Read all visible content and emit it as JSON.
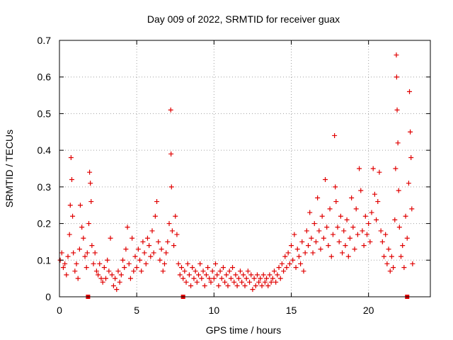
{
  "chart_data": {
    "type": "scatter",
    "title": "Day 009 of 2022, SRMTID for receiver guax",
    "xlabel": "GPS time / hours",
    "ylabel": "SRMTID / TECUs",
    "xlim": [
      0,
      24
    ],
    "ylim": [
      0,
      0.7
    ],
    "xticks": [
      0,
      5,
      10,
      15,
      20
    ],
    "yticks": [
      0,
      0.1,
      0.2,
      0.3,
      0.4,
      0.5,
      0.6,
      0.7
    ],
    "xtick_labels": [
      "0",
      "5",
      "10",
      "15",
      "20"
    ],
    "ytick_labels": [
      "0",
      "0.1",
      "0.2",
      "0.3",
      "0.4",
      "0.5",
      "0.6",
      "0.7"
    ],
    "grid": true,
    "marker": "+",
    "color": "#e00000",
    "series": [
      {
        "name": "SRMTID",
        "points": [
          [
            0.05,
            0.1
          ],
          [
            0.15,
            0.12
          ],
          [
            0.25,
            0.08
          ],
          [
            0.35,
            0.09
          ],
          [
            0.45,
            0.06
          ],
          [
            0.55,
            0.11
          ],
          [
            0.65,
            0.17
          ],
          [
            0.7,
            0.25
          ],
          [
            0.75,
            0.38
          ],
          [
            0.8,
            0.32
          ],
          [
            0.85,
            0.22
          ],
          [
            0.9,
            0.12
          ],
          [
            1.0,
            0.07
          ],
          [
            1.1,
            0.09
          ],
          [
            1.2,
            0.05
          ],
          [
            1.3,
            0.13
          ],
          [
            1.35,
            0.25
          ],
          [
            1.45,
            0.19
          ],
          [
            1.55,
            0.16
          ],
          [
            1.65,
            0.11
          ],
          [
            1.75,
            0.08
          ],
          [
            1.8,
            0.12
          ],
          [
            1.9,
            0.2
          ],
          [
            1.95,
            0.34
          ],
          [
            2.0,
            0.31
          ],
          [
            2.05,
            0.26
          ],
          [
            2.1,
            0.14
          ],
          [
            2.2,
            0.09
          ],
          [
            2.3,
            0.12
          ],
          [
            2.4,
            0.07
          ],
          [
            2.5,
            0.06
          ],
          [
            2.6,
            0.09
          ],
          [
            2.7,
            0.05
          ],
          [
            2.8,
            0.04
          ],
          [
            2.9,
            0.08
          ],
          [
            3.0,
            0.05
          ],
          [
            3.1,
            0.1
          ],
          [
            3.2,
            0.07
          ],
          [
            3.3,
            0.16
          ],
          [
            3.4,
            0.06
          ],
          [
            3.5,
            0.03
          ],
          [
            3.6,
            0.05
          ],
          [
            3.7,
            0.02
          ],
          [
            3.8,
            0.07
          ],
          [
            3.9,
            0.04
          ],
          [
            4.0,
            0.06
          ],
          [
            4.1,
            0.1
          ],
          [
            4.2,
            0.08
          ],
          [
            4.3,
            0.13
          ],
          [
            4.4,
            0.19
          ],
          [
            4.5,
            0.09
          ],
          [
            4.6,
            0.05
          ],
          [
            4.7,
            0.16
          ],
          [
            4.8,
            0.07
          ],
          [
            4.9,
            0.11
          ],
          [
            5.0,
            0.08
          ],
          [
            5.1,
            0.13
          ],
          [
            5.2,
            0.1
          ],
          [
            5.3,
            0.07
          ],
          [
            5.4,
            0.15
          ],
          [
            5.5,
            0.12
          ],
          [
            5.6,
            0.09
          ],
          [
            5.7,
            0.16
          ],
          [
            5.8,
            0.14
          ],
          [
            5.9,
            0.11
          ],
          [
            6.0,
            0.18
          ],
          [
            6.1,
            0.12
          ],
          [
            6.2,
            0.22
          ],
          [
            6.3,
            0.26
          ],
          [
            6.4,
            0.15
          ],
          [
            6.5,
            0.1
          ],
          [
            6.6,
            0.13
          ],
          [
            6.7,
            0.07
          ],
          [
            6.8,
            0.09
          ],
          [
            6.9,
            0.12
          ],
          [
            7.0,
            0.15
          ],
          [
            7.1,
            0.2
          ],
          [
            7.2,
            0.51
          ],
          [
            7.22,
            0.39
          ],
          [
            7.25,
            0.3
          ],
          [
            7.3,
            0.18
          ],
          [
            7.4,
            0.14
          ],
          [
            7.5,
            0.22
          ],
          [
            7.6,
            0.17
          ],
          [
            7.7,
            0.09
          ],
          [
            7.8,
            0.06
          ],
          [
            7.9,
            0.08
          ],
          [
            8.0,
            0.05
          ],
          [
            8.1,
            0.07
          ],
          [
            8.2,
            0.04
          ],
          [
            8.3,
            0.09
          ],
          [
            8.4,
            0.06
          ],
          [
            8.5,
            0.03
          ],
          [
            8.6,
            0.08
          ],
          [
            8.7,
            0.05
          ],
          [
            8.8,
            0.07
          ],
          [
            8.9,
            0.04
          ],
          [
            9.0,
            0.06
          ],
          [
            9.1,
            0.09
          ],
          [
            9.2,
            0.05
          ],
          [
            9.3,
            0.07
          ],
          [
            9.4,
            0.03
          ],
          [
            9.5,
            0.06
          ],
          [
            9.6,
            0.08
          ],
          [
            9.7,
            0.05
          ],
          [
            9.8,
            0.04
          ],
          [
            9.9,
            0.07
          ],
          [
            10.0,
            0.05
          ],
          [
            10.1,
            0.09
          ],
          [
            10.2,
            0.06
          ],
          [
            10.3,
            0.03
          ],
          [
            10.4,
            0.07
          ],
          [
            10.5,
            0.05
          ],
          [
            10.6,
            0.08
          ],
          [
            10.7,
            0.04
          ],
          [
            10.8,
            0.06
          ],
          [
            10.9,
            0.03
          ],
          [
            11.0,
            0.07
          ],
          [
            11.1,
            0.05
          ],
          [
            11.2,
            0.08
          ],
          [
            11.3,
            0.04
          ],
          [
            11.4,
            0.06
          ],
          [
            11.5,
            0.03
          ],
          [
            11.6,
            0.05
          ],
          [
            11.7,
            0.07
          ],
          [
            11.8,
            0.04
          ],
          [
            11.9,
            0.06
          ],
          [
            12.0,
            0.03
          ],
          [
            12.1,
            0.05
          ],
          [
            12.2,
            0.07
          ],
          [
            12.3,
            0.04
          ],
          [
            12.4,
            0.06
          ],
          [
            12.5,
            0.02
          ],
          [
            12.6,
            0.05
          ],
          [
            12.7,
            0.03
          ],
          [
            12.8,
            0.06
          ],
          [
            12.9,
            0.04
          ],
          [
            13.0,
            0.05
          ],
          [
            13.1,
            0.03
          ],
          [
            13.2,
            0.06
          ],
          [
            13.3,
            0.04
          ],
          [
            13.4,
            0.05
          ],
          [
            13.5,
            0.03
          ],
          [
            13.6,
            0.06
          ],
          [
            13.7,
            0.04
          ],
          [
            13.8,
            0.05
          ],
          [
            13.9,
            0.07
          ],
          [
            14.0,
            0.04
          ],
          [
            14.1,
            0.06
          ],
          [
            14.2,
            0.08
          ],
          [
            14.3,
            0.05
          ],
          [
            14.4,
            0.09
          ],
          [
            14.5,
            0.07
          ],
          [
            14.6,
            0.11
          ],
          [
            14.7,
            0.08
          ],
          [
            14.8,
            0.12
          ],
          [
            14.9,
            0.09
          ],
          [
            15.0,
            0.14
          ],
          [
            15.1,
            0.1
          ],
          [
            15.2,
            0.17
          ],
          [
            15.3,
            0.08
          ],
          [
            15.4,
            0.13
          ],
          [
            15.5,
            0.11
          ],
          [
            15.6,
            0.09
          ],
          [
            15.7,
            0.15
          ],
          [
            15.8,
            0.07
          ],
          [
            15.9,
            0.12
          ],
          [
            16.0,
            0.18
          ],
          [
            16.1,
            0.14
          ],
          [
            16.2,
            0.23
          ],
          [
            16.3,
            0.16
          ],
          [
            16.4,
            0.12
          ],
          [
            16.5,
            0.2
          ],
          [
            16.6,
            0.15
          ],
          [
            16.7,
            0.27
          ],
          [
            16.8,
            0.18
          ],
          [
            16.9,
            0.13
          ],
          [
            17.0,
            0.22
          ],
          [
            17.1,
            0.16
          ],
          [
            17.2,
            0.32
          ],
          [
            17.3,
            0.19
          ],
          [
            17.4,
            0.14
          ],
          [
            17.5,
            0.24
          ],
          [
            17.6,
            0.11
          ],
          [
            17.7,
            0.17
          ],
          [
            17.8,
            0.44
          ],
          [
            17.85,
            0.3
          ],
          [
            17.9,
            0.26
          ],
          [
            18.0,
            0.19
          ],
          [
            18.1,
            0.15
          ],
          [
            18.2,
            0.22
          ],
          [
            18.3,
            0.12
          ],
          [
            18.4,
            0.18
          ],
          [
            18.5,
            0.14
          ],
          [
            18.6,
            0.21
          ],
          [
            18.7,
            0.11
          ],
          [
            18.8,
            0.16
          ],
          [
            18.9,
            0.27
          ],
          [
            19.0,
            0.19
          ],
          [
            19.1,
            0.13
          ],
          [
            19.2,
            0.24
          ],
          [
            19.3,
            0.17
          ],
          [
            19.4,
            0.35
          ],
          [
            19.5,
            0.29
          ],
          [
            19.6,
            0.18
          ],
          [
            19.7,
            0.14
          ],
          [
            19.8,
            0.22
          ],
          [
            19.9,
            0.17
          ],
          [
            20.0,
            0.2
          ],
          [
            20.1,
            0.15
          ],
          [
            20.2,
            0.23
          ],
          [
            20.3,
            0.35
          ],
          [
            20.4,
            0.28
          ],
          [
            20.5,
            0.21
          ],
          [
            20.6,
            0.26
          ],
          [
            20.7,
            0.34
          ],
          [
            20.8,
            0.18
          ],
          [
            20.9,
            0.15
          ],
          [
            21.0,
            0.11
          ],
          [
            21.1,
            0.17
          ],
          [
            21.2,
            0.09
          ],
          [
            21.3,
            0.13
          ],
          [
            21.4,
            0.07
          ],
          [
            21.5,
            0.11
          ],
          [
            21.6,
            0.08
          ],
          [
            21.7,
            0.21
          ],
          [
            21.75,
            0.35
          ],
          [
            21.8,
            0.66
          ],
          [
            21.82,
            0.6
          ],
          [
            21.85,
            0.51
          ],
          [
            21.9,
            0.42
          ],
          [
            21.95,
            0.29
          ],
          [
            22.0,
            0.19
          ],
          [
            22.1,
            0.11
          ],
          [
            22.2,
            0.14
          ],
          [
            22.3,
            0.08
          ],
          [
            22.4,
            0.22
          ],
          [
            22.5,
            0.16
          ],
          [
            22.6,
            0.31
          ],
          [
            22.65,
            0.56
          ],
          [
            22.7,
            0.45
          ],
          [
            22.75,
            0.38
          ],
          [
            22.8,
            0.24
          ],
          [
            22.85,
            0.09
          ]
        ]
      }
    ],
    "gap_markers_x": [
      1.85,
      8.0,
      22.5
    ]
  }
}
